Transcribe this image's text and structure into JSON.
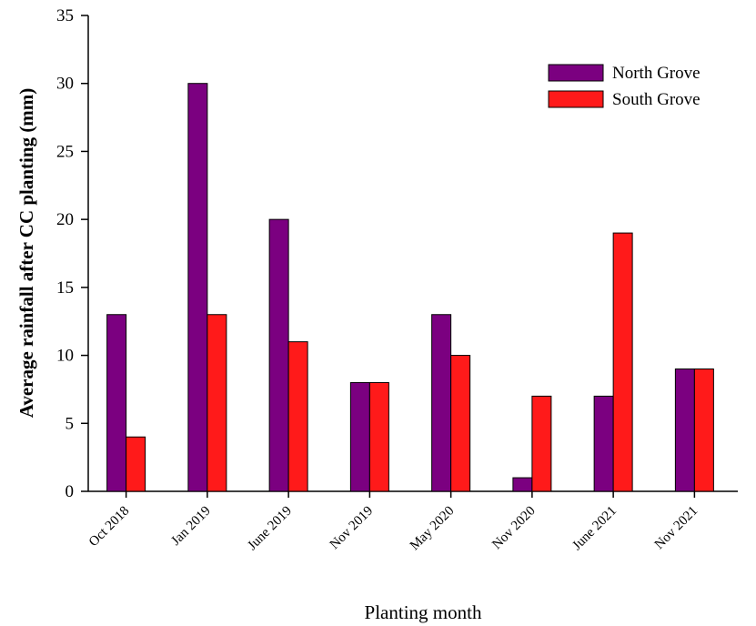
{
  "chart_data": {
    "type": "bar",
    "title": "",
    "xlabel": "Planting month",
    "ylabel": "Average rainfall after CC planting (mm)",
    "ylim": [
      0,
      35
    ],
    "yticks": [
      0,
      5,
      10,
      15,
      20,
      25,
      30,
      35
    ],
    "grid": false,
    "legend_position": "top-right",
    "categories": [
      "Oct 2018",
      "Jan 2019",
      "June 2019",
      "Nov 2019",
      "May 2020",
      "Nov 2020",
      "June 2021",
      "Nov 2021"
    ],
    "series": [
      {
        "name": "North Grove",
        "color": "#7b0080",
        "values": [
          13,
          30,
          20,
          8,
          13,
          1,
          7,
          9
        ]
      },
      {
        "name": "South Grove",
        "color": "#ff1a1a",
        "values": [
          4,
          13,
          11,
          8,
          10,
          7,
          19,
          9
        ]
      }
    ]
  }
}
